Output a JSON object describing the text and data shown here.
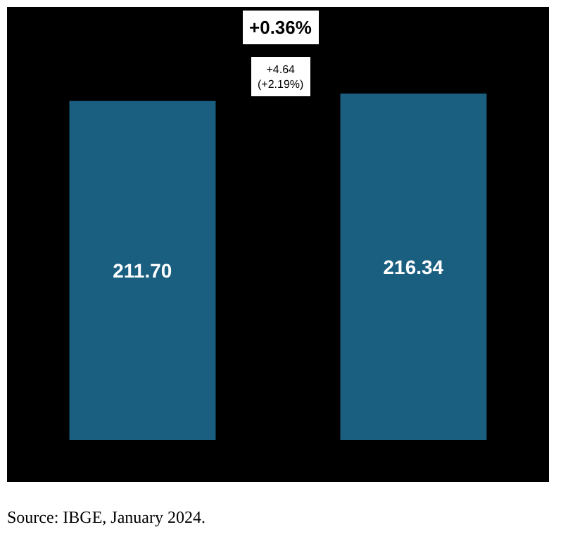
{
  "chart_data": {
    "type": "bar",
    "categories": [
      null,
      null
    ],
    "values": [
      211.7,
      216.34
    ],
    "color": "#1a5e80",
    "value_labels": [
      "211.70",
      "216.34"
    ],
    "annotations": [
      "+0.36%",
      "+4.64\n(+2.19%)",
      "Source: IBGE, January 2024."
    ],
    "grid": false
  }
}
